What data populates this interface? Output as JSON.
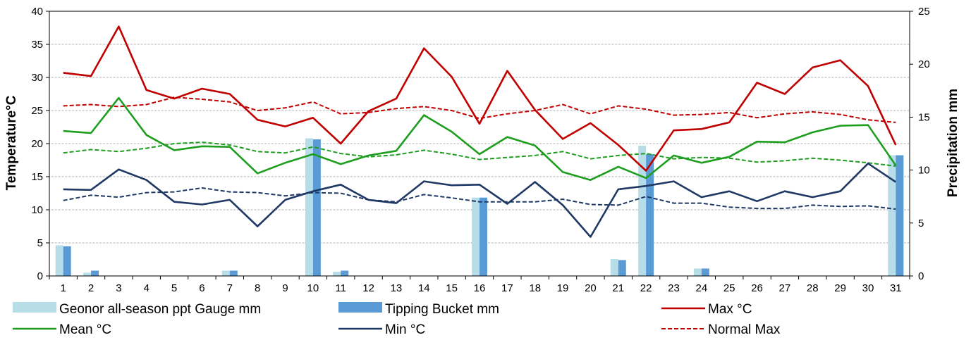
{
  "chart_data": {
    "type": "bar",
    "title": "",
    "xlabel": "",
    "ylabel": "Temperature°C",
    "y2label": "Precipitation mm",
    "ylim": [
      0,
      40
    ],
    "y2lim": [
      0,
      25
    ],
    "yticks": [
      0,
      5,
      10,
      15,
      20,
      25,
      30,
      35,
      40
    ],
    "y2ticks": [
      0,
      5,
      10,
      15,
      20,
      25
    ],
    "grid": true,
    "legend": "bottom",
    "categories": [
      "1",
      "2",
      "3",
      "4",
      "5",
      "6",
      "7",
      "8",
      "9",
      "10",
      "11",
      "12",
      "13",
      "14",
      "15",
      "16",
      "17",
      "18",
      "19",
      "20",
      "21",
      "22",
      "23",
      "24",
      "25",
      "26",
      "27",
      "28",
      "29",
      "30",
      "31"
    ],
    "bar_series": [
      {
        "name": "Geonor all-season ppt Gauge mm",
        "color": "#b7dde8",
        "axis": "right",
        "values": [
          2.9,
          0.3,
          0,
          0,
          0,
          0,
          0.5,
          0,
          0,
          13.0,
          0.4,
          0,
          0,
          0,
          0,
          7.4,
          0,
          0,
          0,
          0,
          1.6,
          12.3,
          0,
          0.7,
          0,
          0,
          0,
          0,
          0,
          0,
          11.4
        ]
      },
      {
        "name": "Tipping Bucket mm",
        "color": "#5b9bd5",
        "axis": "right",
        "values": [
          2.8,
          0.5,
          0,
          0,
          0,
          0,
          0.5,
          0,
          0,
          12.9,
          0.5,
          0,
          0,
          0,
          0,
          7.4,
          0,
          0,
          0,
          0,
          1.5,
          11.5,
          0,
          0.7,
          0,
          0,
          0,
          0,
          0,
          0,
          11.4
        ]
      }
    ],
    "line_series": [
      {
        "name": "Max °C",
        "color": "#c00000",
        "dashed": false,
        "values": [
          30.7,
          30.2,
          37.7,
          28.1,
          26.8,
          28.3,
          27.5,
          23.6,
          22.6,
          23.9,
          20.0,
          24.9,
          26.8,
          34.4,
          30.1,
          23.0,
          31.0,
          25.1,
          20.7,
          23.1,
          19.8,
          15.9,
          22.0,
          22.2,
          23.2,
          29.2,
          27.5,
          31.5,
          32.6,
          28.7,
          19.8
        ]
      },
      {
        "name": "Mean °C",
        "color": "#1e9e1e",
        "dashed": false,
        "values": [
          21.9,
          21.6,
          26.9,
          21.3,
          19.0,
          19.6,
          19.5,
          15.5,
          17.1,
          18.4,
          16.9,
          18.2,
          18.9,
          24.3,
          21.8,
          18.4,
          21.0,
          19.7,
          15.7,
          14.5,
          16.5,
          14.8,
          18.2,
          17.1,
          18.0,
          20.3,
          20.2,
          21.7,
          22.7,
          22.8,
          16.7
        ]
      },
      {
        "name": "Min °C",
        "color": "#1f3864",
        "dashed": false,
        "values": [
          13.1,
          13.0,
          16.1,
          14.5,
          11.2,
          10.8,
          11.5,
          7.5,
          11.5,
          12.8,
          13.8,
          11.5,
          11.0,
          14.3,
          13.7,
          13.8,
          10.9,
          14.2,
          10.7,
          5.9,
          13.1,
          13.6,
          14.3,
          11.9,
          12.8,
          11.3,
          12.8,
          11.9,
          12.8,
          17.0,
          14.2
        ]
      },
      {
        "name": "Normal Max",
        "color": "#c00000",
        "dashed": true,
        "values": [
          25.7,
          25.9,
          25.6,
          25.9,
          27.0,
          26.7,
          26.3,
          25.0,
          25.4,
          26.3,
          24.5,
          24.7,
          25.3,
          25.6,
          25.0,
          23.8,
          24.5,
          25.0,
          25.9,
          24.5,
          25.7,
          25.2,
          24.3,
          24.4,
          24.7,
          23.9,
          24.5,
          24.8,
          24.4,
          23.6,
          23.2
        ]
      },
      {
        "name": "",
        "color": "#1e9e1e",
        "dashed": true,
        "values": [
          18.6,
          19.1,
          18.8,
          19.3,
          20.0,
          20.2,
          19.8,
          18.8,
          18.6,
          19.5,
          18.5,
          18.0,
          18.3,
          19.0,
          18.4,
          17.6,
          17.9,
          18.2,
          18.8,
          17.7,
          18.2,
          18.5,
          17.7,
          17.9,
          17.8,
          17.2,
          17.4,
          17.8,
          17.5,
          17.1,
          16.6
        ]
      },
      {
        "name": "",
        "color": "#1f3864",
        "dashed": true,
        "values": [
          11.4,
          12.2,
          11.9,
          12.6,
          12.7,
          13.3,
          12.7,
          12.6,
          12.1,
          12.6,
          12.5,
          11.5,
          11.2,
          12.3,
          11.8,
          11.2,
          11.2,
          11.2,
          11.6,
          10.8,
          10.7,
          12.0,
          11.0,
          11.0,
          10.4,
          10.2,
          10.2,
          10.7,
          10.5,
          10.6,
          10.1
        ]
      }
    ]
  }
}
